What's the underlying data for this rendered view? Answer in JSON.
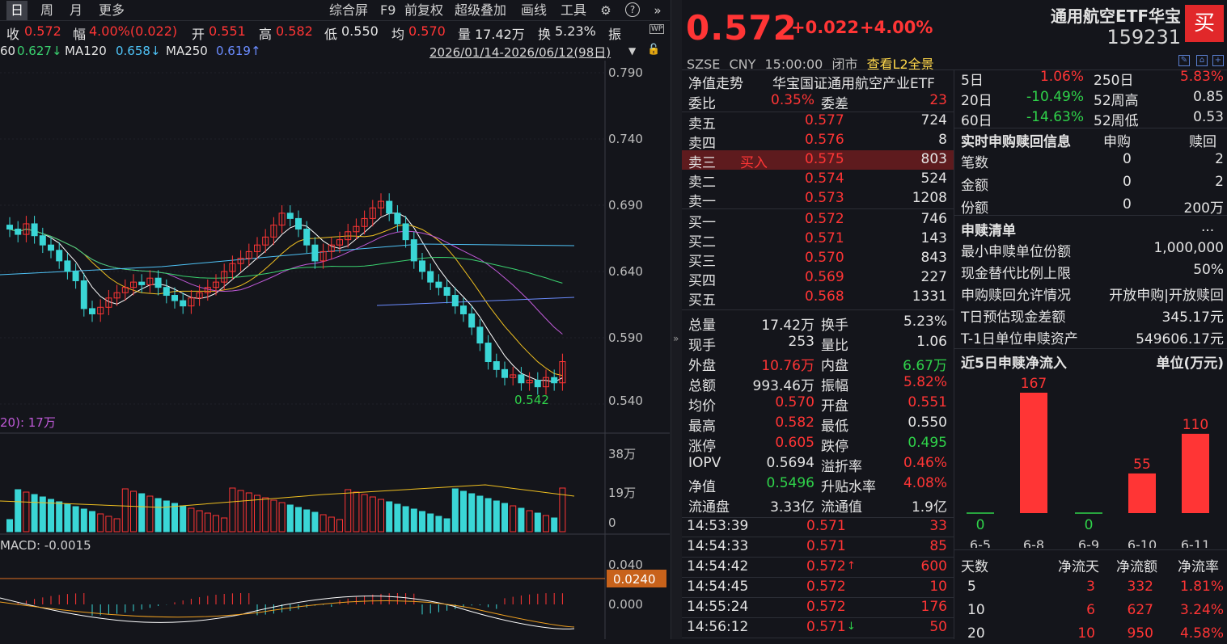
{
  "toolbar": {
    "tabs": [
      "日",
      "周",
      "月",
      "更多"
    ],
    "tools": [
      "综合屏",
      "F9",
      "前复权",
      "超级叠加",
      "画线",
      "工具"
    ]
  },
  "quote_bar": {
    "close_l": "收",
    "close_v": "0.572",
    "amp_l": "幅",
    "amp_v": "4.00%(0.022)",
    "open_l": "开",
    "open_v": "0.551",
    "high_l": "高",
    "high_v": "0.582",
    "low_l": "低",
    "low_v": "0.550",
    "avg_l": "均",
    "avg_v": "0.570",
    "vol_l": "量",
    "vol_v": "17.42万",
    "turn_l": "换",
    "turn_v": "5.23%",
    "zhen": "振"
  },
  "ma_line": {
    "ma60_v": "60",
    "ma60_n": "0.627↓",
    "ma120_l": "MA120",
    "ma120_v": "0.658↓",
    "ma250_l": "MA250",
    "ma250_v": "0.619↑",
    "range": "2026/01/14-2026/06/12(98日)"
  },
  "price_axis": [
    "0.790",
    "0.740",
    "0.690",
    "0.640",
    "0.590",
    "0.540"
  ],
  "low_mark": "0.542",
  "vol_label": "20): 17万",
  "vol_axis": [
    "38万",
    "19万",
    "0"
  ],
  "macd_label": "MACD: -0.0015",
  "macd_axis": [
    "0.040",
    "0.000"
  ],
  "macd_tag": "0.0240",
  "header": {
    "price": "0.572",
    "chg": "+0.022",
    "pct": "+4.00%",
    "name": "通用航空ETF华宝",
    "code": "159231",
    "buy": "买",
    "exchange": "SZSE",
    "currency": "CNY",
    "time": "15:00:00",
    "state": "闭市",
    "l2": "查看L2全景"
  },
  "orderbook": {
    "nav_trend_l": "净值走势",
    "nav_trend_v": "华宝国证通用航空产业ETF",
    "weibi_l": "委比",
    "weibi_v": "0.35%",
    "weicha_l": "委差",
    "weicha_v": "23",
    "asks": [
      {
        "l": "卖五",
        "p": "0.577",
        "q": "724"
      },
      {
        "l": "卖四",
        "p": "0.576",
        "q": "8"
      },
      {
        "l": "卖三",
        "tag": "买入",
        "p": "0.575",
        "q": "803"
      },
      {
        "l": "卖二",
        "p": "0.574",
        "q": "524"
      },
      {
        "l": "卖一",
        "p": "0.573",
        "q": "1208"
      }
    ],
    "bids": [
      {
        "l": "买一",
        "p": "0.572",
        "q": "746"
      },
      {
        "l": "买二",
        "p": "0.571",
        "q": "143"
      },
      {
        "l": "买三",
        "p": "0.570",
        "q": "843"
      },
      {
        "l": "买四",
        "p": "0.569",
        "q": "227"
      },
      {
        "l": "买五",
        "p": "0.568",
        "q": "1331"
      }
    ],
    "stats": [
      {
        "l1": "总量",
        "v1": "17.42万",
        "l2": "换手",
        "v2": "5.23%"
      },
      {
        "l1": "现手",
        "v1": "253",
        "l2": "量比",
        "v2": "1.06"
      },
      {
        "l1": "外盘",
        "v1": "10.76万",
        "l2": "内盘",
        "v2": "6.67万"
      },
      {
        "l1": "总额",
        "v1": "993.46万",
        "l2": "振幅",
        "v2": "5.82%"
      },
      {
        "l1": "均价",
        "v1": "0.570",
        "l2": "开盘",
        "v2": "0.551"
      },
      {
        "l1": "最高",
        "v1": "0.582",
        "l2": "最低",
        "v2": "0.550"
      },
      {
        "l1": "涨停",
        "v1": "0.605",
        "l2": "跌停",
        "v2": "0.495"
      },
      {
        "l1": "IOPV",
        "v1": "0.5694",
        "l2": "溢折率",
        "v2": "0.46%"
      },
      {
        "l1": "净值",
        "v1": "0.5496",
        "l2": "升贴水率",
        "v2": "4.08%"
      },
      {
        "l1": "流通盘",
        "v1": "3.33亿",
        "l2": "流通值",
        "v2": "1.9亿"
      }
    ],
    "ticks": [
      {
        "t": "14:53:39",
        "p": "0.571",
        "a": "",
        "q": "33"
      },
      {
        "t": "14:54:33",
        "p": "0.571",
        "a": "",
        "q": "85"
      },
      {
        "t": "14:54:42",
        "p": "0.572",
        "a": "↑",
        "q": "600"
      },
      {
        "t": "14:54:45",
        "p": "0.572",
        "a": "",
        "q": "10"
      },
      {
        "t": "14:55:24",
        "p": "0.572",
        "a": "",
        "q": "176"
      },
      {
        "t": "14:56:12",
        "p": "0.571",
        "a": "↓",
        "q": "50"
      }
    ]
  },
  "side": {
    "perf": [
      {
        "l1": "5日",
        "v1": "1.06%",
        "l2": "250日",
        "v2": "5.83%"
      },
      {
        "l1": "20日",
        "v1": "-10.49%",
        "l2": "52周高",
        "v2": "0.85"
      },
      {
        "l1": "60日",
        "v1": "-14.63%",
        "l2": "52周低",
        "v2": "0.53"
      }
    ],
    "realtime_title": "实时申购赎回信息",
    "col_sg": "申购",
    "col_sh": "赎回",
    "realtime": [
      {
        "l": "笔数",
        "a": "0",
        "b": "2"
      },
      {
        "l": "金额",
        "a": "0",
        "b": "2"
      },
      {
        "l": "份额",
        "a": "0",
        "b": "200万"
      }
    ],
    "list_title": "申赎清单",
    "list_more": "...",
    "list": [
      {
        "l": "最小申赎单位份额",
        "v": "1,000,000"
      },
      {
        "l": "现金替代比例上限",
        "v": "50%"
      },
      {
        "l": "申购赎回允许情况",
        "v": "开放申购|开放赎回"
      },
      {
        "l": "T日预估现金差额",
        "v": "345.17元"
      },
      {
        "l": "T-1日单位申赎资产",
        "v": "549606.17元"
      }
    ],
    "flow_title": "近5日申赎净流入",
    "flow_unit": "单位(万元)",
    "flow": [
      {
        "d": "6-5",
        "v": "0"
      },
      {
        "d": "6-8",
        "v": "167"
      },
      {
        "d": "6-9",
        "v": "0"
      },
      {
        "d": "6-10",
        "v": "55"
      },
      {
        "d": "6-11",
        "v": "110"
      }
    ],
    "flow_values": [
      0,
      167,
      0,
      55,
      110
    ],
    "table_head": [
      "天数",
      "净流天",
      "净流额",
      "净流率"
    ],
    "table": [
      [
        "5",
        "3",
        "332",
        "1.81%"
      ],
      [
        "10",
        "6",
        "627",
        "3.24%"
      ],
      [
        "20",
        "10",
        "950",
        "4.58%"
      ]
    ]
  }
}
